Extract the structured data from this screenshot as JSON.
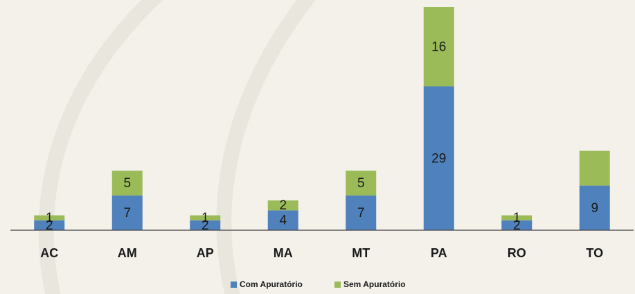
{
  "chart_data": {
    "type": "bar",
    "stacked": true,
    "categories": [
      "AC",
      "AM",
      "AP",
      "MA",
      "MT",
      "PA",
      "RO",
      "TO"
    ],
    "series": [
      {
        "name": "Com Apuratório",
        "color": "#4f81bd",
        "values": [
          2,
          7,
          2,
          4,
          7,
          29,
          2,
          9
        ],
        "value_labels": [
          "2",
          "7",
          "2",
          "4",
          "7",
          "29",
          "2",
          "9"
        ]
      },
      {
        "name": "Sem Apuratório",
        "color": "#9bbb59",
        "values": [
          1,
          5,
          1,
          2,
          5,
          16,
          1,
          7
        ],
        "value_labels": [
          "1",
          "5",
          "1",
          "2",
          "5",
          "16",
          "1",
          null
        ]
      }
    ],
    "ylim": [
      0,
      45
    ],
    "legend": "bottom"
  }
}
